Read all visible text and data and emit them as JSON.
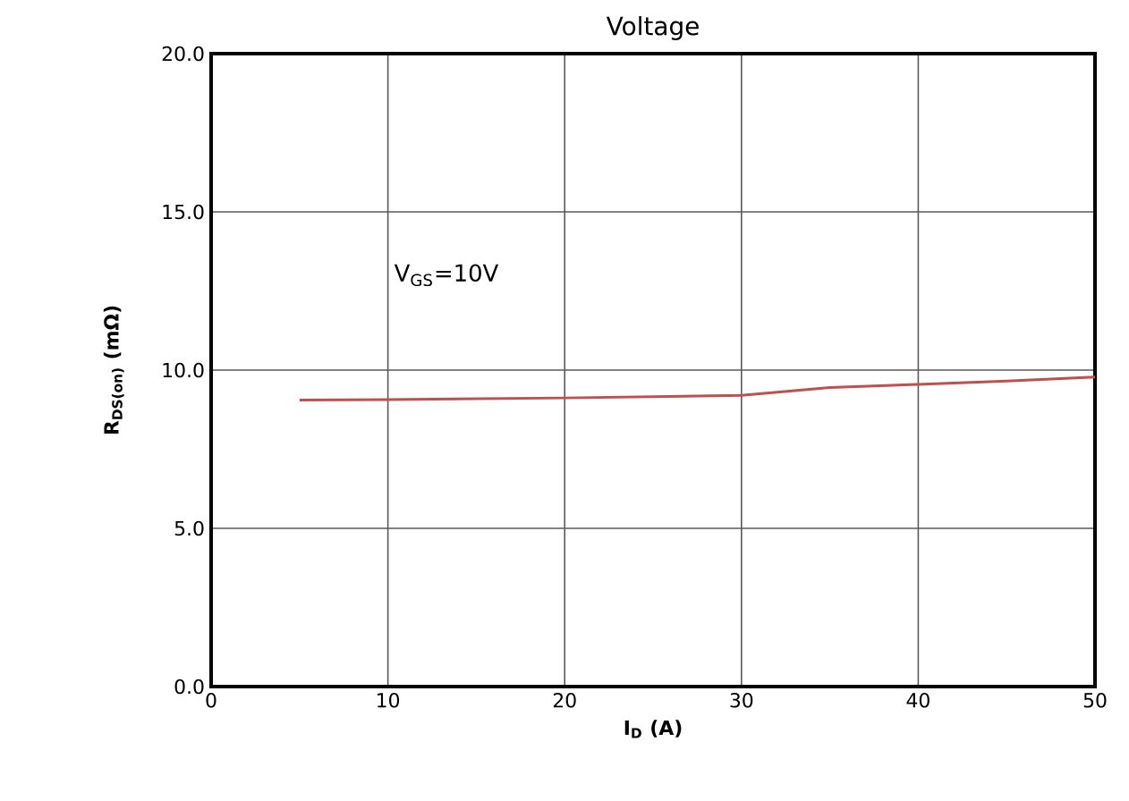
{
  "chart_data": {
    "type": "line",
    "title": "Voltage",
    "xlabel": "**I$_{D}$ (A)**",
    "ylabel": "**R$_{DS(on)}$ (mΩ)**",
    "annotations": [
      "V$_{GS}$=10V"
    ],
    "x": [
      5,
      10,
      20,
      30,
      35,
      40,
      45,
      50
    ],
    "series": [
      {
        "color": "#c0504d",
        "values": [
          9.05,
          9.07,
          9.12,
          9.2,
          9.45,
          9.55,
          9.65,
          9.78
        ]
      }
    ],
    "xlim": [
      0,
      50
    ],
    "xticks": [
      0,
      10,
      20,
      30,
      40,
      50
    ],
    "ylim": [
      0,
      20
    ],
    "yticks": [
      {
        "value": 0,
        "label": "0.0"
      },
      {
        "value": 5,
        "label": "5.0"
      },
      {
        "value": 10,
        "label": "10.0"
      },
      {
        "value": 15,
        "label": "15.0"
      },
      {
        "value": 20,
        "label": "20.0"
      }
    ],
    "grid": true,
    "marker": "none",
    "line_style": "solid"
  }
}
